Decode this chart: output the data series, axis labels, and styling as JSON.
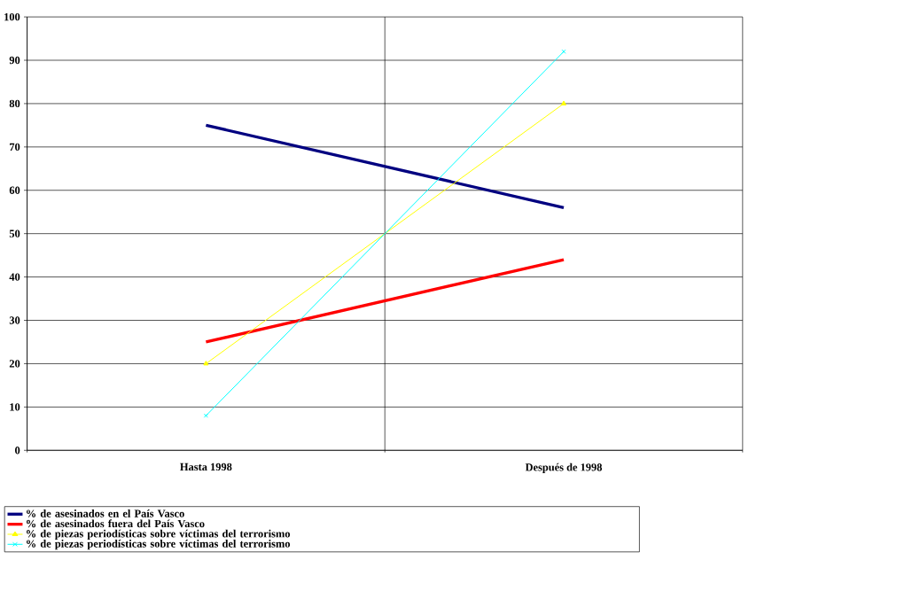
{
  "chart_data": {
    "type": "line",
    "categories": [
      "Hasta 1998",
      "Después de 1998"
    ],
    "series": [
      {
        "name": "% de asesinados en el País Vasco",
        "color": "#000080",
        "values": [
          75,
          56
        ],
        "marker": "none"
      },
      {
        "name": "% de asesinados fuera del País Vasco",
        "color": "#ff0000",
        "values": [
          25,
          44
        ],
        "marker": "none"
      },
      {
        "name": "% de piezas periodísticas sobre víctimas del terrorismo",
        "color": "#ffff00",
        "values": [
          20,
          80
        ],
        "marker": "triangle"
      },
      {
        "name": "% de piezas periodísticas sobre víctimas del terrorismo",
        "color": "#00ffff",
        "values": [
          8,
          92
        ],
        "marker": "cross"
      }
    ],
    "ylim": [
      0,
      100
    ],
    "yticks": [
      0,
      10,
      20,
      30,
      40,
      50,
      60,
      70,
      80,
      90,
      100
    ],
    "grid": true,
    "legend": "bottom"
  }
}
